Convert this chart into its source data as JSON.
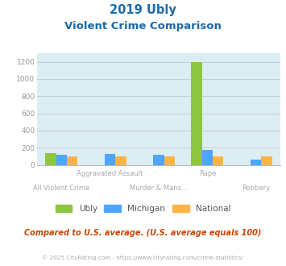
{
  "title_line1": "2019 Ubly",
  "title_line2": "Violent Crime Comparison",
  "categories": [
    "All Violent Crime",
    "Aggravated Assault",
    "Murder & Mans...",
    "Rape",
    "Robbery"
  ],
  "x_labels_top": {
    "1": "Aggravated Assault",
    "3": "Rape"
  },
  "x_labels_bottom": {
    "0": "All Violent Crime",
    "2": "Murder & Mans...",
    "4": "Robbery"
  },
  "series": {
    "Ubly": [
      135,
      0,
      0,
      1200,
      0
    ],
    "Michigan": [
      115,
      125,
      115,
      170,
      65
    ],
    "National": [
      100,
      100,
      100,
      100,
      100
    ]
  },
  "colors": {
    "Ubly": "#8dc63f",
    "Michigan": "#4da6ff",
    "National": "#ffb347"
  },
  "ylim": [
    0,
    1300
  ],
  "yticks": [
    0,
    200,
    400,
    600,
    800,
    1000,
    1200
  ],
  "background_color": "#ddeef2",
  "grid_color": "#c0d0d8",
  "title_color": "#1a6aaa",
  "axis_label_color": "#aaaaaa",
  "footer_text": "Compared to U.S. average. (U.S. average equals 100)",
  "copyright_text": "© 2025 CityRating.com - https://www.cityrating.com/crime-statistics/",
  "footer_color": "#cc4400",
  "copyright_color": "#aaaaaa",
  "bar_width": 0.22
}
